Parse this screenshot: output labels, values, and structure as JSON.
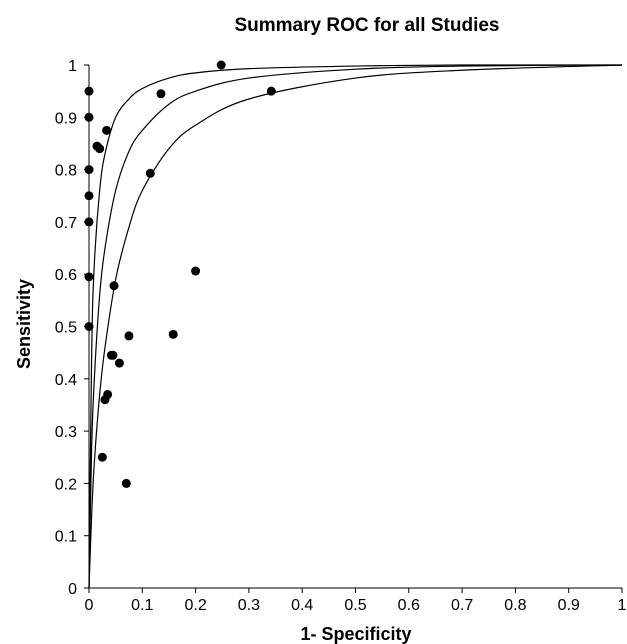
{
  "chart_data": {
    "type": "scatter",
    "title": "Summary ROC for all Studies",
    "xlabel": "1- Specificity",
    "ylabel": "Sensitivity",
    "xlim": [
      0,
      1
    ],
    "ylim": [
      0,
      1
    ],
    "x_ticks": [
      "0",
      "0.1",
      "0.2",
      "0.3",
      "0.4",
      "0.5",
      "0.6",
      "0.7",
      "0.8",
      "0.9",
      "1"
    ],
    "y_ticks": [
      "0",
      "0.1",
      "0.2",
      "0.3",
      "0.4",
      "0.5",
      "0.6",
      "0.7",
      "0.8",
      "0.9",
      "1"
    ],
    "grid": false,
    "legend": "none",
    "curves": [
      {
        "values": [
          [
            0,
            0
          ],
          [
            0.005,
            0.45
          ],
          [
            0.01,
            0.62
          ],
          [
            0.02,
            0.76
          ],
          [
            0.03,
            0.83
          ],
          [
            0.05,
            0.9
          ],
          [
            0.075,
            0.935
          ],
          [
            0.1,
            0.955
          ],
          [
            0.15,
            0.975
          ],
          [
            0.2,
            0.985
          ],
          [
            0.3,
            0.993
          ],
          [
            0.5,
            0.998
          ],
          [
            0.7,
            1.0
          ],
          [
            1,
            1.0
          ]
        ]
      },
      {
        "values": [
          [
            0,
            0
          ],
          [
            0.005,
            0.27
          ],
          [
            0.01,
            0.4
          ],
          [
            0.02,
            0.56
          ],
          [
            0.03,
            0.65
          ],
          [
            0.05,
            0.76
          ],
          [
            0.075,
            0.835
          ],
          [
            0.1,
            0.875
          ],
          [
            0.15,
            0.925
          ],
          [
            0.2,
            0.95
          ],
          [
            0.3,
            0.975
          ],
          [
            0.5,
            0.992
          ],
          [
            0.7,
            0.998
          ],
          [
            1,
            1.0
          ]
        ]
      },
      {
        "values": [
          [
            0,
            0
          ],
          [
            0.005,
            0.14
          ],
          [
            0.01,
            0.24
          ],
          [
            0.02,
            0.37
          ],
          [
            0.03,
            0.46
          ],
          [
            0.05,
            0.59
          ],
          [
            0.075,
            0.69
          ],
          [
            0.1,
            0.76
          ],
          [
            0.15,
            0.84
          ],
          [
            0.2,
            0.885
          ],
          [
            0.3,
            0.935
          ],
          [
            0.5,
            0.975
          ],
          [
            0.7,
            0.99
          ],
          [
            1,
            1.0
          ]
        ]
      }
    ],
    "points": [
      {
        "x": 0.0,
        "y": 0.95
      },
      {
        "x": 0.0,
        "y": 0.9
      },
      {
        "x": 0.0,
        "y": 0.8
      },
      {
        "x": 0.0,
        "y": 0.75
      },
      {
        "x": 0.0,
        "y": 0.7
      },
      {
        "x": 0.0,
        "y": 0.595
      },
      {
        "x": 0.0,
        "y": 0.5
      },
      {
        "x": 0.015,
        "y": 0.845
      },
      {
        "x": 0.02,
        "y": 0.84
      },
      {
        "x": 0.033,
        "y": 0.875
      },
      {
        "x": 0.025,
        "y": 0.25
      },
      {
        "x": 0.03,
        "y": 0.36
      },
      {
        "x": 0.035,
        "y": 0.37
      },
      {
        "x": 0.042,
        "y": 0.445
      },
      {
        "x": 0.045,
        "y": 0.445
      },
      {
        "x": 0.047,
        "y": 0.578
      },
      {
        "x": 0.057,
        "y": 0.43
      },
      {
        "x": 0.07,
        "y": 0.2
      },
      {
        "x": 0.075,
        "y": 0.482
      },
      {
        "x": 0.115,
        "y": 0.793
      },
      {
        "x": 0.135,
        "y": 0.945
      },
      {
        "x": 0.158,
        "y": 0.485
      },
      {
        "x": 0.2,
        "y": 0.606
      },
      {
        "x": 0.248,
        "y": 1.0
      },
      {
        "x": 0.342,
        "y": 0.95
      }
    ]
  }
}
